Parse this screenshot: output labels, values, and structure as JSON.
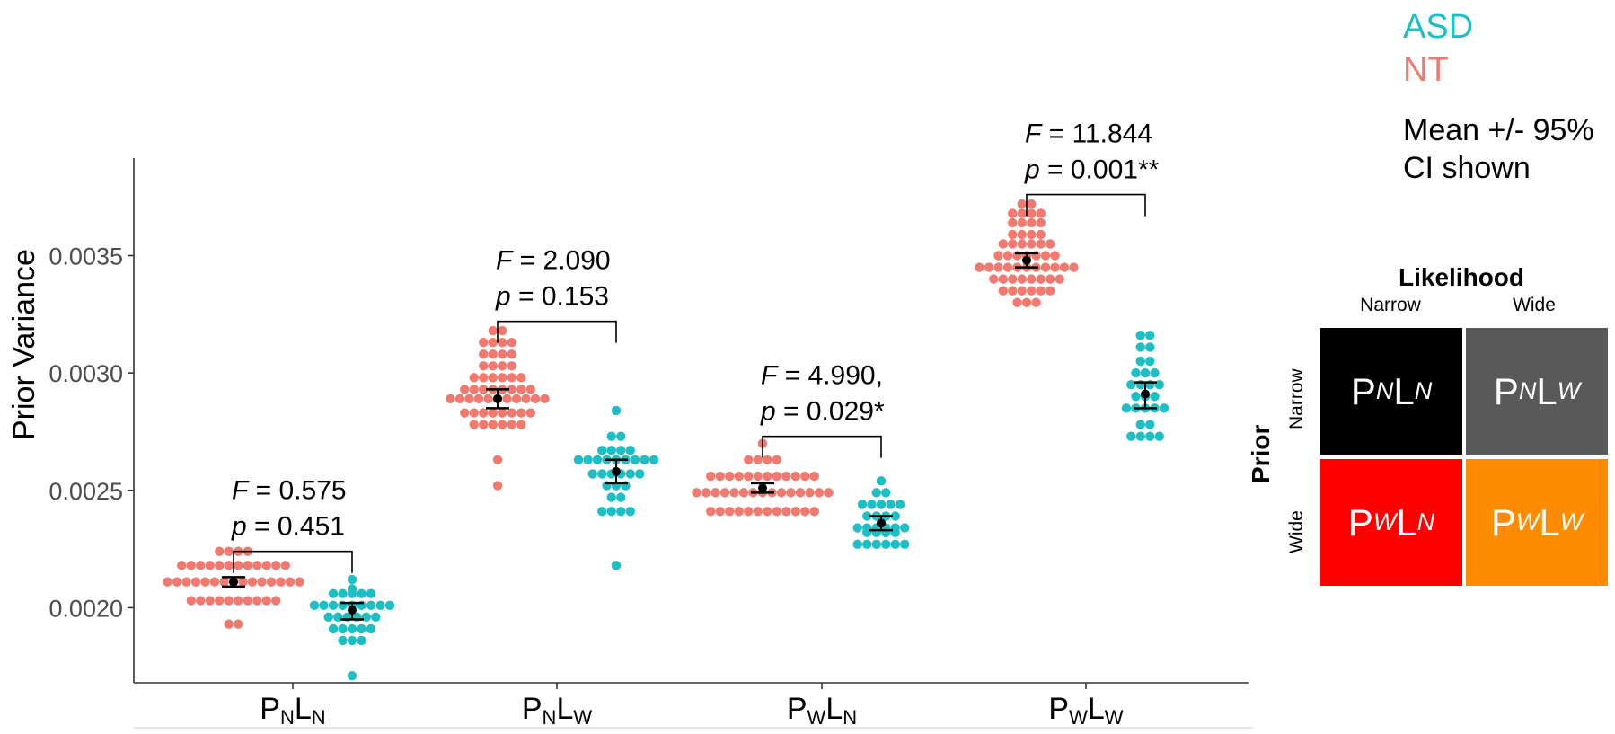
{
  "chart_data": {
    "type": "scatter",
    "ylabel": "Prior Variance",
    "ylim": [
      0.00168,
      0.0039
    ],
    "yticks": [
      "0.0020",
      "0.0025",
      "0.0030",
      "0.0035"
    ],
    "categories": [
      {
        "main1": "P",
        "sub1": "N",
        "main2": "L",
        "sub2": "N"
      },
      {
        "main1": "P",
        "sub1": "N",
        "main2": "L",
        "sub2": "W"
      },
      {
        "main1": "P",
        "sub1": "W",
        "main2": "L",
        "sub2": "N"
      },
      {
        "main1": "P",
        "sub1": "W",
        "main2": "L",
        "sub2": "W"
      }
    ],
    "legend": {
      "asd": "ASD",
      "nt": "NT"
    },
    "colors": {
      "asd": "#1ebfc4",
      "nt": "#f07a70",
      "mean": "#000000"
    },
    "series": [
      {
        "name": "NT",
        "groups": [
          {
            "mean": 0.00211,
            "ci": [
              0.00209,
              0.00213
            ],
            "values": [
              0.00193,
              0.00193,
              0.00203,
              0.00203,
              0.00203,
              0.00203,
              0.00203,
              0.00203,
              0.00203,
              0.00203,
              0.00203,
              0.00203,
              0.00211,
              0.00211,
              0.00211,
              0.00211,
              0.00211,
              0.00211,
              0.00211,
              0.00211,
              0.00211,
              0.00211,
              0.00211,
              0.00211,
              0.00211,
              0.00211,
              0.00211,
              0.00218,
              0.00218,
              0.00218,
              0.00218,
              0.00218,
              0.00218,
              0.00218,
              0.00218,
              0.00218,
              0.00218,
              0.00218,
              0.00218,
              0.00224,
              0.00224,
              0.00224,
              0.00224
            ]
          },
          {
            "mean": 0.00289,
            "ci": [
              0.00285,
              0.00293
            ],
            "values": [
              0.00252,
              0.00263,
              0.00278,
              0.00278,
              0.00278,
              0.00278,
              0.00278,
              0.00278,
              0.00283,
              0.00283,
              0.00283,
              0.00283,
              0.00283,
              0.00283,
              0.00283,
              0.00283,
              0.00289,
              0.00289,
              0.00289,
              0.00289,
              0.00289,
              0.00289,
              0.00289,
              0.00289,
              0.00289,
              0.00289,
              0.00289,
              0.00293,
              0.00293,
              0.00293,
              0.00293,
              0.00293,
              0.00293,
              0.00293,
              0.00293,
              0.00298,
              0.00298,
              0.00298,
              0.00298,
              0.00298,
              0.00298,
              0.00303,
              0.00303,
              0.00303,
              0.00303,
              0.00308,
              0.00308,
              0.00308,
              0.00308,
              0.00313,
              0.00313,
              0.00313,
              0.00313,
              0.00318,
              0.00318
            ]
          },
          {
            "mean": 0.00251,
            "ci": [
              0.00249,
              0.00253
            ],
            "values": [
              0.00241,
              0.00241,
              0.00241,
              0.00241,
              0.00241,
              0.00241,
              0.00241,
              0.00241,
              0.00241,
              0.00241,
              0.00241,
              0.00241,
              0.00249,
              0.00249,
              0.00249,
              0.00249,
              0.00249,
              0.00249,
              0.00249,
              0.00249,
              0.00249,
              0.00249,
              0.00249,
              0.00249,
              0.00249,
              0.00249,
              0.00249,
              0.00256,
              0.00256,
              0.00256,
              0.00256,
              0.00256,
              0.00256,
              0.00256,
              0.00256,
              0.00256,
              0.00256,
              0.00256,
              0.00256,
              0.00263,
              0.00263,
              0.00263,
              0.00263,
              0.0027
            ]
          },
          {
            "mean": 0.00348,
            "ci": [
              0.00345,
              0.00351
            ],
            "values": [
              0.0033,
              0.0033,
              0.0033,
              0.00335,
              0.00335,
              0.00335,
              0.00335,
              0.00335,
              0.00335,
              0.0034,
              0.0034,
              0.0034,
              0.0034,
              0.0034,
              0.0034,
              0.0034,
              0.0034,
              0.00345,
              0.00345,
              0.00345,
              0.00345,
              0.00345,
              0.00345,
              0.00345,
              0.00345,
              0.00345,
              0.00345,
              0.00345,
              0.0035,
              0.0035,
              0.0035,
              0.0035,
              0.0035,
              0.0035,
              0.0035,
              0.00355,
              0.00355,
              0.00355,
              0.00355,
              0.00355,
              0.00355,
              0.00359,
              0.00359,
              0.00359,
              0.00359,
              0.00364,
              0.00364,
              0.00364,
              0.00364,
              0.00368,
              0.00368,
              0.00368,
              0.00368,
              0.00372,
              0.00372
            ]
          }
        ]
      },
      {
        "name": "ASD",
        "groups": [
          {
            "mean": 0.00199,
            "ci": [
              0.00195,
              0.00202
            ],
            "values": [
              0.00171,
              0.00186,
              0.00186,
              0.00186,
              0.00191,
              0.00191,
              0.00191,
              0.00191,
              0.00191,
              0.00196,
              0.00196,
              0.00196,
              0.00196,
              0.00196,
              0.00196,
              0.00201,
              0.00201,
              0.00201,
              0.00201,
              0.00201,
              0.00201,
              0.00201,
              0.00201,
              0.00201,
              0.00206,
              0.00206,
              0.00206,
              0.00206,
              0.00206,
              0.00208,
              0.00212
            ]
          },
          {
            "mean": 0.00258,
            "ci": [
              0.00253,
              0.00263
            ],
            "values": [
              0.00218,
              0.00241,
              0.00241,
              0.00241,
              0.00241,
              0.00247,
              0.00247,
              0.00252,
              0.00252,
              0.00252,
              0.00257,
              0.00257,
              0.00257,
              0.00257,
              0.00257,
              0.00257,
              0.00263,
              0.00263,
              0.00263,
              0.00263,
              0.00263,
              0.00263,
              0.00263,
              0.00263,
              0.00263,
              0.00267,
              0.00267,
              0.00267,
              0.00267,
              0.00273,
              0.00273,
              0.00284
            ]
          },
          {
            "mean": 0.00236,
            "ci": [
              0.00233,
              0.00239
            ],
            "values": [
              0.00227,
              0.00227,
              0.00227,
              0.00227,
              0.00227,
              0.00227,
              0.00232,
              0.00232,
              0.00232,
              0.00232,
              0.00234,
              0.00234,
              0.00234,
              0.00234,
              0.00234,
              0.00234,
              0.00239,
              0.00239,
              0.00239,
              0.00239,
              0.00244,
              0.00244,
              0.00244,
              0.00244,
              0.00244,
              0.00249,
              0.00249,
              0.00254
            ]
          },
          {
            "mean": 0.00291,
            "ci": [
              0.00285,
              0.00296
            ],
            "values": [
              0.00273,
              0.00273,
              0.00273,
              0.00273,
              0.00278,
              0.00278,
              0.00285,
              0.00285,
              0.00285,
              0.00285,
              0.00285,
              0.0029,
              0.0029,
              0.0029,
              0.00295,
              0.00295,
              0.00295,
              0.00295,
              0.003,
              0.003,
              0.003,
              0.00305,
              0.00305,
              0.00311,
              0.00311,
              0.00316,
              0.00316
            ]
          }
        ]
      }
    ],
    "annotations": [
      {
        "f_label": "F",
        "f_value": " = 0.575",
        "p_label": "p",
        "p_value": " = 0.451",
        "y_bracket": 0.00224
      },
      {
        "f_label": "F",
        "f_value": " = 2.090",
        "p_label": "p",
        "p_value": " = 0.153",
        "y_bracket": 0.00322
      },
      {
        "f_label": "F",
        "f_value": " = 4.990,",
        "p_label": "p",
        "p_value": " = 0.029*",
        "y_bracket": 0.00273
      },
      {
        "f_label": "F",
        "f_value": " = 11.844",
        "p_label": "p",
        "p_value": " = 0.001**",
        "y_bracket": 0.00376
      }
    ]
  },
  "notes": {
    "ci": "Mean +/- 95% CI shown"
  },
  "design_grid": {
    "title": "Likelihood",
    "col_narrow": "Narrow",
    "col_wide": "Wide",
    "row_title": "Prior",
    "row_narrow": "Narrow",
    "row_wide": "Wide",
    "cells": [
      {
        "color": "#000000",
        "main1": "P",
        "sub1": "N",
        "main2": "L",
        "sub2": "N"
      },
      {
        "color": "#595959",
        "main1": "P",
        "sub1": "N",
        "main2": "L",
        "sub2": "W"
      },
      {
        "color": "#ff0000",
        "main1": "P",
        "sub1": "W",
        "main2": "L",
        "sub2": "N"
      },
      {
        "color": "#ff8c00",
        "main1": "P",
        "sub1": "W",
        "main2": "L",
        "sub2": "W"
      }
    ]
  }
}
